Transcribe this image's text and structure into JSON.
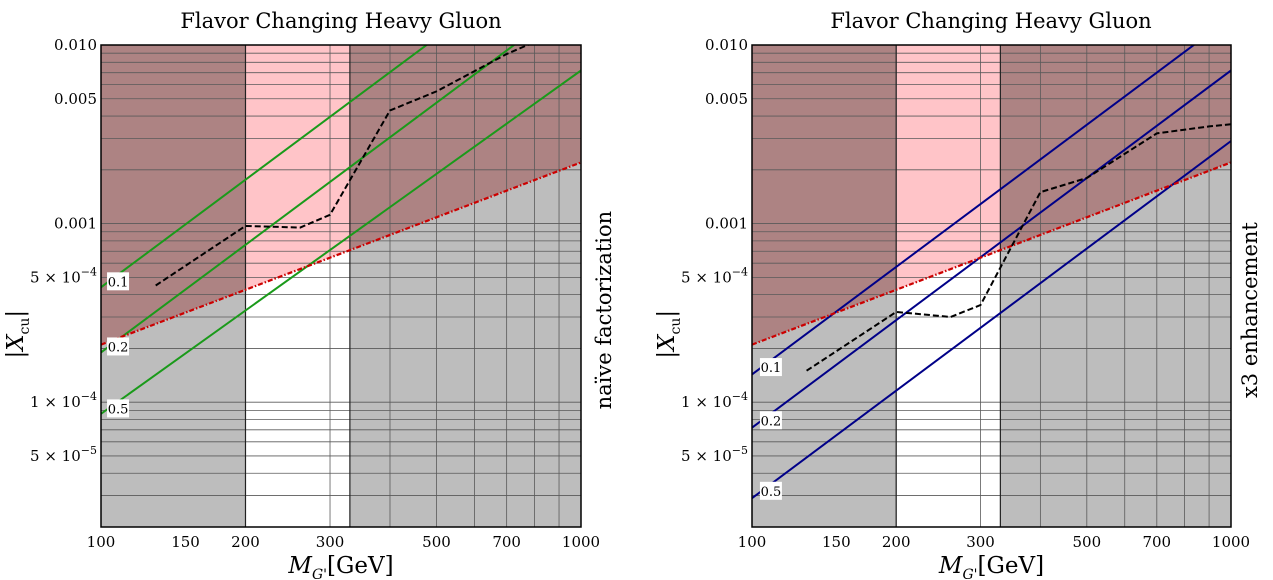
{
  "colors": {
    "excluded_region": "#ad8383",
    "allowed_pink": "#ffc4c8",
    "grey_region": "#bdbdbd",
    "grid": "#5a5a5a",
    "dashed_limit": "#000000",
    "dotted_red": "#cc0000",
    "green_lines": "#1a9a1a",
    "blue_lines": "#000088"
  },
  "chart_data": [
    {
      "type": "line",
      "title": "Flavor Changing Heavy Gluon",
      "xlabel_main": "M",
      "xlabel_sub": "G'",
      "xlabel_unit": "[GeV]",
      "ylabel_main": "|X",
      "ylabel_sub": "cu",
      "ylabel_close": "|",
      "side_note": "naïve factorization",
      "xscale": "log",
      "yscale": "log",
      "xlim": [
        100,
        1000
      ],
      "ylim": [
        2e-05,
        0.01
      ],
      "x_ticks": [
        {
          "value": 100,
          "label": "100"
        },
        {
          "value": 150,
          "label": "150"
        },
        {
          "value": 200,
          "label": "200"
        },
        {
          "value": 300,
          "label": "300"
        },
        {
          "value": 500,
          "label": "500"
        },
        {
          "value": 700,
          "label": "700"
        },
        {
          "value": 1000,
          "label": "1000"
        }
      ],
      "y_ticks": [
        {
          "value": 5e-05,
          "mant": "5 × 10",
          "exp": "−5"
        },
        {
          "value": 0.0001,
          "mant": "1 × 10",
          "exp": "−4"
        },
        {
          "value": 0.0005,
          "mant": "5 × 10",
          "exp": "−4"
        },
        {
          "value": 0.001,
          "mant": "0.001",
          "exp": ""
        },
        {
          "value": 0.005,
          "mant": "0.005",
          "exp": ""
        },
        {
          "value": 0.01,
          "mant": "0.010",
          "exp": ""
        }
      ],
      "excluded_x_ranges": [
        [
          100,
          200
        ],
        [
          330,
          1000
        ]
      ],
      "pink_x_range": [
        200,
        330
      ],
      "dotted_boundary": {
        "x": [
          100,
          1000
        ],
        "y": [
          0.00021,
          0.0022
        ]
      },
      "dashed_limit": {
        "x": [
          130,
          200,
          260,
          300,
          400,
          500,
          700,
          900
        ],
        "y": [
          0.00045,
          0.00097,
          0.00095,
          0.00112,
          0.0043,
          0.0055,
          0.0089,
          0.0119
        ]
      },
      "contours_color_key": "green_lines",
      "contours": [
        {
          "label": "0.1",
          "x": [
            100,
            1000
          ],
          "y": [
            0.00044,
            0.044
          ]
        },
        {
          "label": "0.2",
          "x": [
            100,
            1000
          ],
          "y": [
            0.00019,
            0.019
          ]
        },
        {
          "label": "0.5",
          "x": [
            100,
            1000
          ],
          "y": [
            8.6e-05,
            0.0072
          ]
        }
      ]
    },
    {
      "type": "line",
      "title": "Flavor Changing Heavy Gluon",
      "xlabel_main": "M",
      "xlabel_sub": "G'",
      "xlabel_unit": "[GeV]",
      "ylabel_main": "|X",
      "ylabel_sub": "cu",
      "ylabel_close": "|",
      "side_note": "x3 enhancement",
      "xscale": "log",
      "yscale": "log",
      "xlim": [
        100,
        1000
      ],
      "ylim": [
        2e-05,
        0.01
      ],
      "x_ticks": [
        {
          "value": 100,
          "label": "100"
        },
        {
          "value": 150,
          "label": "150"
        },
        {
          "value": 200,
          "label": "200"
        },
        {
          "value": 300,
          "label": "300"
        },
        {
          "value": 500,
          "label": "500"
        },
        {
          "value": 700,
          "label": "700"
        },
        {
          "value": 1000,
          "label": "1000"
        }
      ],
      "y_ticks": [
        {
          "value": 5e-05,
          "mant": "5 × 10",
          "exp": "−5"
        },
        {
          "value": 0.0001,
          "mant": "1 × 10",
          "exp": "−4"
        },
        {
          "value": 0.0005,
          "mant": "5 × 10",
          "exp": "−4"
        },
        {
          "value": 0.001,
          "mant": "0.001",
          "exp": ""
        },
        {
          "value": 0.005,
          "mant": "0.005",
          "exp": ""
        },
        {
          "value": 0.01,
          "mant": "0.010",
          "exp": ""
        }
      ],
      "excluded_x_ranges": [
        [
          100,
          200
        ],
        [
          330,
          1000
        ]
      ],
      "pink_x_range": [
        200,
        330
      ],
      "dotted_boundary": {
        "x": [
          100,
          1000
        ],
        "y": [
          0.00021,
          0.0022
        ]
      },
      "dashed_limit": {
        "x": [
          130,
          200,
          260,
          300,
          400,
          500,
          700,
          900,
          1000
        ],
        "y": [
          0.00015,
          0.00032,
          0.0003,
          0.00035,
          0.0015,
          0.0018,
          0.0032,
          0.0035,
          0.0036
        ]
      },
      "contours_color_key": "blue_lines",
      "contours": [
        {
          "label": "0.1",
          "x": [
            100,
            1000
          ],
          "y": [
            0.000143,
            0.0143
          ]
        },
        {
          "label": "0.2",
          "x": [
            100,
            1000
          ],
          "y": [
            7.2e-05,
            0.0072
          ]
        },
        {
          "label": "0.5",
          "x": [
            100,
            1000
          ],
          "y": [
            2.9e-05,
            0.0029
          ]
        }
      ]
    }
  ]
}
